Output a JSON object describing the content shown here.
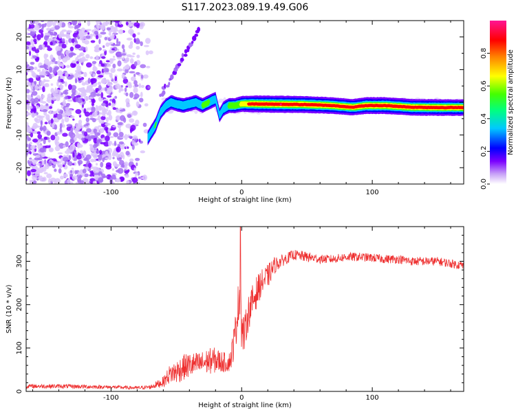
{
  "figure_title": "S117.2023.089.19.49.G06",
  "chart_data": [
    {
      "type": "heatmap",
      "title": "S117.2023.089.19.49.G06",
      "xlabel": "Height of straight line (km)",
      "ylabel": "Frequency (Hz)",
      "xlim": [
        -165,
        170
      ],
      "ylim": [
        -25,
        25
      ],
      "xticks": [
        -100,
        0,
        100
      ],
      "yticks": [
        -20,
        -10,
        0,
        10,
        20
      ],
      "xtick_labels": [
        "-100",
        "0",
        "100"
      ],
      "ytick_labels": [
        "-20",
        "-10",
        "0",
        "10",
        "20"
      ],
      "colorbar": {
        "label": "Normalized spectral amplitude",
        "range": [
          0,
          1
        ],
        "ticks": [
          0.0,
          0.2,
          0.4,
          0.6,
          0.8
        ],
        "tick_labels": [
          "0.0",
          "0.2",
          "0.4",
          "0.6",
          "0.8"
        ],
        "colors": [
          "#ffffff",
          "#c9a4f7",
          "#7a00ff",
          "#0000ff",
          "#00c8ff",
          "#00ff80",
          "#44ff00",
          "#ffff00",
          "#ff8000",
          "#ff0000",
          "#ff1493"
        ]
      },
      "ridge": {
        "description_points_x": [
          -72,
          -66,
          -62,
          -58,
          -54,
          -50,
          -45,
          -40,
          -35,
          -30,
          -25,
          -20,
          -17,
          -14,
          -10,
          -5,
          0,
          10,
          30,
          50,
          70,
          85,
          95,
          110,
          130,
          150,
          170
        ],
        "description_points_y": [
          -11,
          -7,
          -3,
          -1,
          0,
          -0.5,
          -1,
          -0.5,
          0,
          -1,
          0,
          1,
          -4,
          -2,
          -1,
          -1,
          -0.5,
          -0.5,
          -0.6,
          -0.7,
          -1,
          -1.5,
          -1,
          -1,
          -1.5,
          -1.6,
          -1.6
        ],
        "amplitude": [
          0.5,
          0.55,
          0.5,
          0.45,
          0.5,
          0.45,
          0.5,
          0.5,
          0.5,
          0.55,
          0.55,
          0.5,
          0.4,
          0.5,
          0.55,
          0.6,
          0.75,
          0.95,
          1.0,
          0.95,
          0.9,
          0.85,
          0.95,
          0.95,
          0.9,
          0.9,
          0.85
        ]
      },
      "scatter_region_x": [
        -165,
        -68
      ],
      "branch": {
        "x_start": -62,
        "y_start": 2,
        "x_end": -33,
        "y_end": 22
      }
    },
    {
      "type": "line",
      "xlabel": "Height of straight line (km)",
      "ylabel": "SNR (10 * v/v)",
      "xlim": [
        -165,
        170
      ],
      "ylim": [
        0,
        380
      ],
      "xticks": [
        -100,
        0,
        100
      ],
      "yticks": [
        0,
        100,
        200,
        300
      ],
      "xtick_labels": [
        "-100",
        "0",
        "100"
      ],
      "ytick_labels": [
        "0",
        "100",
        "200",
        "300"
      ],
      "series": [
        {
          "name": "SNR",
          "color": "#ee3030",
          "x": [
            -165,
            -140,
            -120,
            -100,
            -80,
            -70,
            -60,
            -55,
            -50,
            -45,
            -40,
            -35,
            -30,
            -25,
            -20,
            -15,
            -10,
            -8,
            -5,
            -3,
            -2,
            -1,
            0,
            2,
            5,
            10,
            15,
            20,
            25,
            30,
            40,
            50,
            60,
            70,
            80,
            90,
            100,
            110,
            120,
            130,
            140,
            150,
            160,
            170
          ],
          "values": [
            12,
            12,
            11,
            10,
            8,
            10,
            22,
            40,
            45,
            55,
            60,
            62,
            65,
            70,
            72,
            68,
            65,
            80,
            130,
            190,
            210,
            250,
            140,
            130,
            180,
            220,
            250,
            265,
            290,
            300,
            315,
            310,
            305,
            305,
            310,
            310,
            308,
            305,
            305,
            300,
            300,
            300,
            295,
            290
          ],
          "noise": [
            5,
            5,
            5,
            4,
            4,
            5,
            12,
            22,
            28,
            30,
            30,
            28,
            28,
            30,
            30,
            25,
            20,
            30,
            45,
            50,
            60,
            90,
            60,
            40,
            40,
            40,
            30,
            28,
            20,
            14,
            12,
            12,
            10,
            10,
            10,
            10,
            10,
            10,
            10,
            10,
            10,
            10,
            10,
            10
          ],
          "spike": {
            "x": -1,
            "value": 380
          }
        }
      ]
    }
  ]
}
